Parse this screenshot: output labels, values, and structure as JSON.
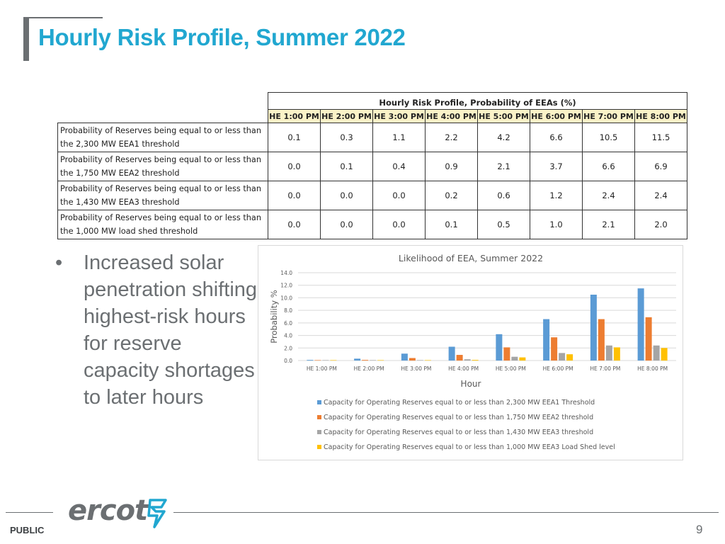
{
  "page": {
    "title": "Hourly Risk Profile, Summer 2022",
    "footer_label": "PUBLIC",
    "logo_text": "ercot",
    "page_number": "9"
  },
  "table": {
    "caption": "Hourly Risk Profile, Probability of EEAs (%)",
    "columns": [
      "HE 1:00 PM",
      "HE 2:00 PM",
      "HE 3:00 PM",
      "HE 4:00 PM",
      "HE 5:00 PM",
      "HE 6:00 PM",
      "HE 7:00 PM",
      "HE 8:00 PM"
    ],
    "rows": [
      {
        "label_line1": "Probability of Reserves being equal to or less than",
        "label_line2": "the 2,300 MW EEA1 threshold",
        "values": [
          "0.1",
          "0.3",
          "1.1",
          "2.2",
          "4.2",
          "6.6",
          "10.5",
          "11.5"
        ]
      },
      {
        "label_line1": "Probability of Reserves being equal to or less than",
        "label_line2": "the 1,750 MW EEA2 threshold",
        "values": [
          "0.0",
          "0.1",
          "0.4",
          "0.9",
          "2.1",
          "3.7",
          "6.6",
          "6.9"
        ]
      },
      {
        "label_line1": "Probability of Reserves being equal to or less than",
        "label_line2": "the 1,430 MW EEA3 threshold",
        "values": [
          "0.0",
          "0.0",
          "0.0",
          "0.2",
          "0.6",
          "1.2",
          "2.4",
          "2.4"
        ]
      },
      {
        "label_line1": "Probability of Reserves being equal to or less than",
        "label_line2": "the 1,000 MW load shed threshold",
        "values": [
          "0.0",
          "0.0",
          "0.0",
          "0.1",
          "0.5",
          "1.0",
          "2.1",
          "2.0"
        ]
      }
    ]
  },
  "bullet": {
    "text": "Increased solar penetration shifting highest-risk hours for reserve capacity shortages to later hours"
  },
  "chart_data": {
    "type": "bar",
    "title": "Likelihood of EEA, Summer 2022",
    "xlabel": "Hour",
    "ylabel": "Probability %",
    "ylim": [
      0,
      14
    ],
    "yticks": [
      "0.0",
      "2.0",
      "4.0",
      "6.0",
      "8.0",
      "10.0",
      "12.0",
      "14.0"
    ],
    "grid": true,
    "legend_position": "bottom",
    "categories": [
      "HE 1:00 PM",
      "HE 2:00 PM",
      "HE 3:00 PM",
      "HE 4:00 PM",
      "HE 5:00 PM",
      "HE 6:00 PM",
      "HE 7:00 PM",
      "HE 8:00 PM"
    ],
    "series": [
      {
        "name": "Capacity for Operating Reserves equal to or less than 2,300 MW EEA1 Threshold",
        "color": "#5b9bd5",
        "values": [
          0.1,
          0.3,
          1.1,
          2.2,
          4.2,
          6.6,
          10.5,
          11.5
        ]
      },
      {
        "name": "Capacity for Operating Reserves equal to or less than 1,750 MW EEA2 threshold",
        "color": "#ed7d31",
        "values": [
          0.0,
          0.1,
          0.4,
          0.9,
          2.1,
          3.7,
          6.6,
          6.9
        ]
      },
      {
        "name": "Capacity for Operating Reserves equal to or less than 1,430 MW EEA3 threshold",
        "color": "#a5a5a5",
        "values": [
          0.0,
          0.0,
          0.0,
          0.2,
          0.6,
          1.2,
          2.4,
          2.4
        ]
      },
      {
        "name": "Capacity for Operating Reserves equal to or less than 1,000 MW EEA3 Load Shed level",
        "color": "#ffc000",
        "values": [
          0.0,
          0.0,
          0.0,
          0.1,
          0.5,
          1.0,
          2.1,
          2.0
        ]
      }
    ]
  },
  "colors": {
    "title": "#21a7d0",
    "gray": "#6b6f72",
    "header_fill": "#fbf3c8",
    "logo_accent": "#21a7d0"
  }
}
